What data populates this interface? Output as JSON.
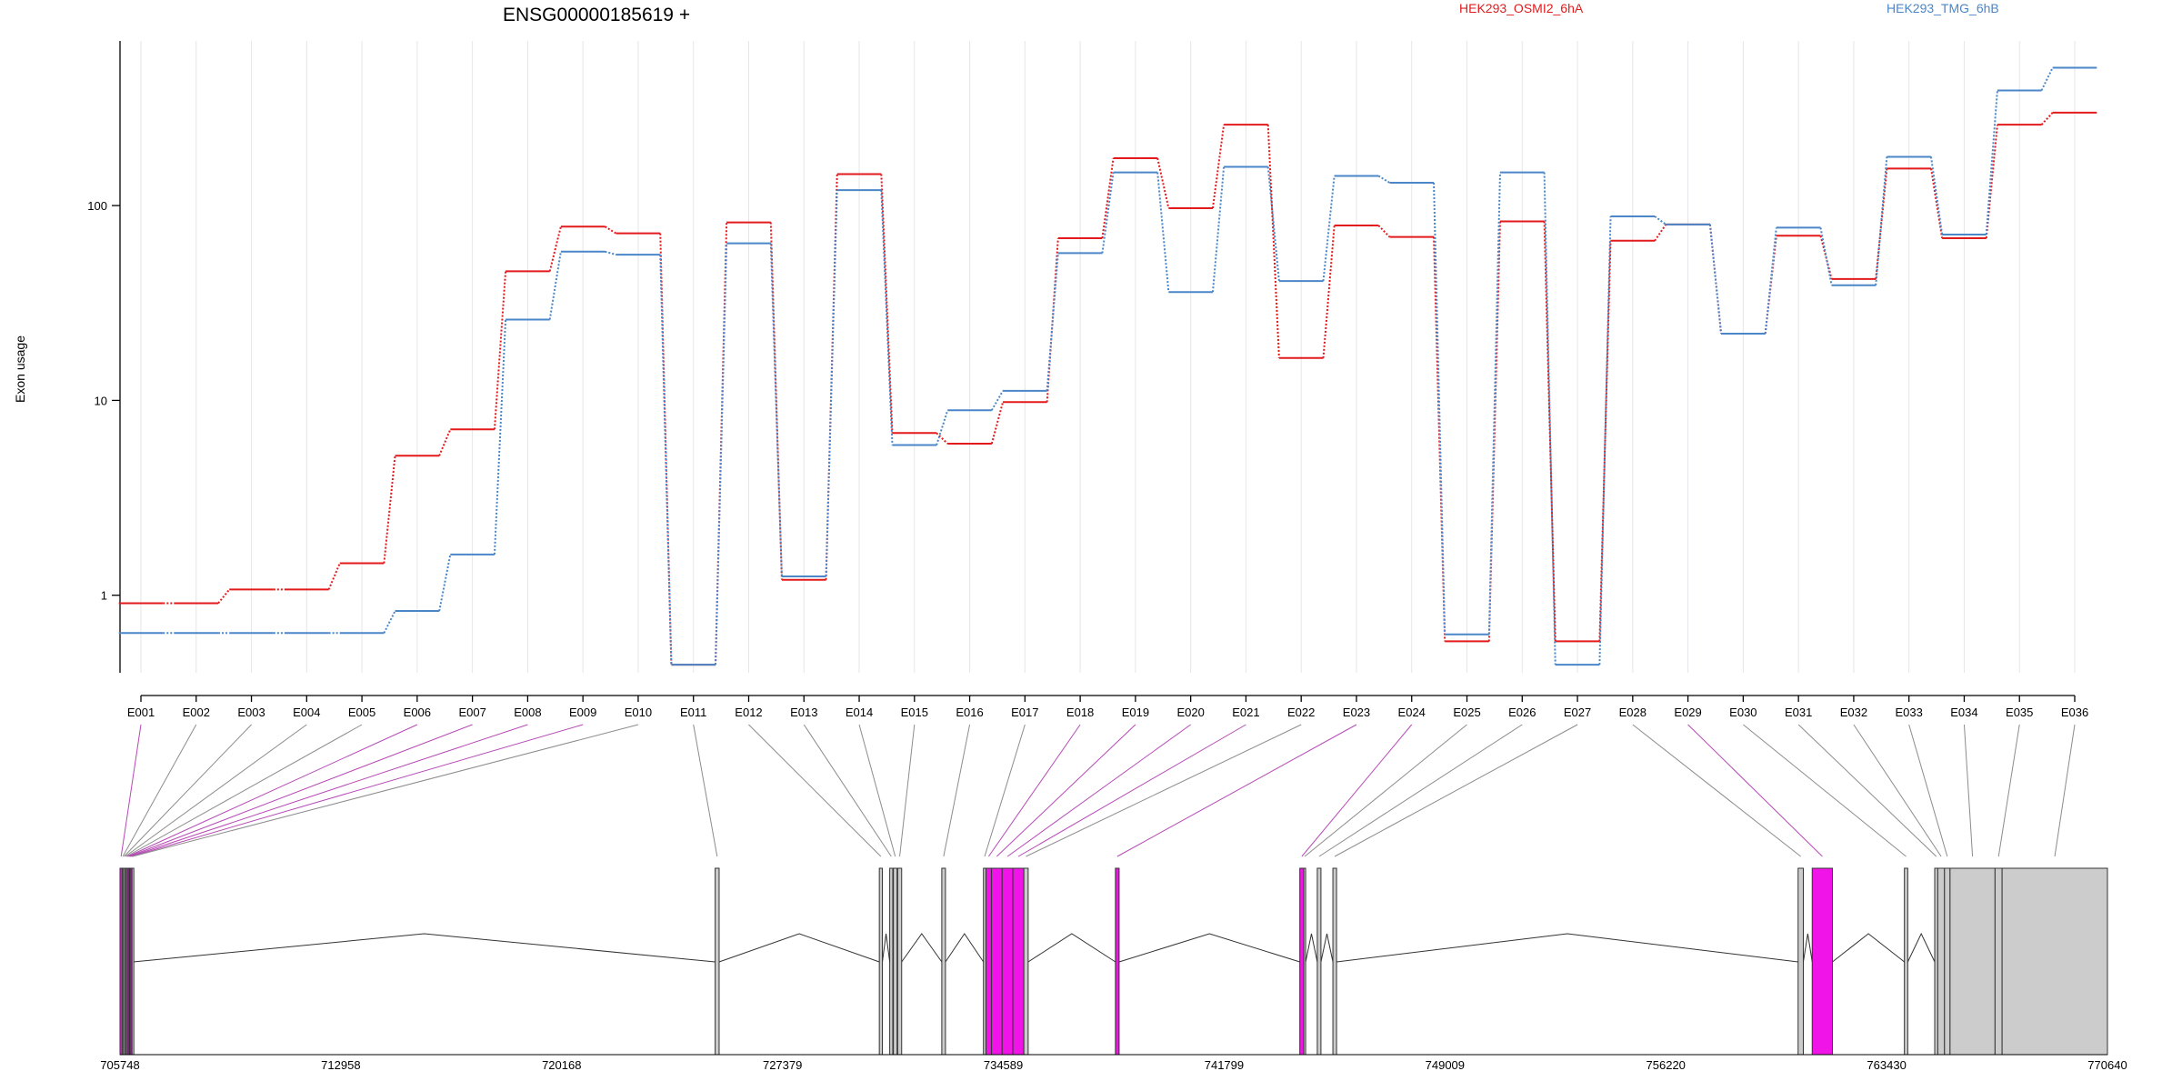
{
  "chart_data": {
    "type": "line",
    "title": "ENSG00000185619 +",
    "ylabel": "Exon usage",
    "yscale": "log",
    "ylim": [
      0.4,
      700
    ],
    "yticks": [
      {
        "value": 1,
        "label": "1"
      },
      {
        "value": 10,
        "label": "10"
      },
      {
        "value": 100,
        "label": "100"
      }
    ],
    "categories": [
      "E001",
      "E002",
      "E003",
      "E004",
      "E005",
      "E006",
      "E007",
      "E008",
      "E009",
      "E010",
      "E011",
      "E012",
      "E013",
      "E014",
      "E015",
      "E016",
      "E017",
      "E018",
      "E019",
      "E020",
      "E021",
      "E022",
      "E023",
      "E024",
      "E025",
      "E026",
      "E027",
      "E028",
      "E029",
      "E030",
      "E031",
      "E032",
      "E033",
      "E034",
      "E035",
      "E036"
    ],
    "series": [
      {
        "name": "HEK293_OSMI2_6hA",
        "color": "#e31a1c",
        "values": [
          0.91,
          0.91,
          1.07,
          1.07,
          1.46,
          5.2,
          7.1,
          46,
          78,
          72,
          0.44,
          82,
          1.2,
          145,
          6.8,
          6.0,
          9.8,
          68,
          175,
          97,
          260,
          16.5,
          79,
          69,
          0.58,
          83,
          0.58,
          66,
          80,
          22,
          70,
          42,
          155,
          68,
          260,
          300
        ]
      },
      {
        "name": "HEK293_TMG_6hB",
        "color": "#4a86c8",
        "values": [
          0.64,
          0.64,
          0.64,
          0.64,
          0.64,
          0.83,
          1.62,
          26,
          58,
          56,
          0.44,
          64,
          1.25,
          120,
          5.9,
          8.9,
          11.2,
          57,
          148,
          36,
          158,
          41,
          142,
          131,
          0.63,
          148,
          0.44,
          88,
          80,
          22,
          77,
          39,
          178,
          71,
          390,
          510
        ]
      }
    ],
    "gene_model": {
      "coordinates": [
        "705748",
        "712958",
        "720168",
        "727379",
        "734589",
        "741799",
        "749009",
        "756220",
        "763430",
        "770640"
      ],
      "genomic_range": [
        705748,
        770640
      ],
      "exons": [
        {
          "id": "E001",
          "start": 705748,
          "end": 705820,
          "highlight": true
        },
        {
          "id": "E002",
          "start": 705820,
          "end": 705860,
          "highlight": false
        },
        {
          "id": "E003",
          "start": 705860,
          "end": 705900,
          "highlight": false
        },
        {
          "id": "E004",
          "start": 705900,
          "end": 705940,
          "highlight": false
        },
        {
          "id": "E005",
          "start": 705940,
          "end": 705980,
          "highlight": false
        },
        {
          "id": "E006",
          "start": 705980,
          "end": 706020,
          "highlight": true
        },
        {
          "id": "E007",
          "start": 706020,
          "end": 706060,
          "highlight": true
        },
        {
          "id": "E008",
          "start": 706060,
          "end": 706100,
          "highlight": true
        },
        {
          "id": "E009",
          "start": 706100,
          "end": 706140,
          "highlight": true
        },
        {
          "id": "E010",
          "start": 706140,
          "end": 706180,
          "highlight": false
        },
        {
          "id": "E011",
          "start": 725180,
          "end": 725310,
          "highlight": false
        },
        {
          "id": "E012",
          "start": 730540,
          "end": 730640,
          "highlight": false
        },
        {
          "id": "E013",
          "start": 730880,
          "end": 730980,
          "highlight": false
        },
        {
          "id": "E014",
          "start": 731000,
          "end": 731120,
          "highlight": false
        },
        {
          "id": "E015",
          "start": 731140,
          "end": 731270,
          "highlight": false
        },
        {
          "id": "E016",
          "start": 732580,
          "end": 732700,
          "highlight": false
        },
        {
          "id": "E017",
          "start": 733940,
          "end": 734020,
          "highlight": false
        },
        {
          "id": "E018",
          "start": 734020,
          "end": 734200,
          "highlight": true
        },
        {
          "id": "E019",
          "start": 734200,
          "end": 734550,
          "highlight": true
        },
        {
          "id": "E020",
          "start": 734550,
          "end": 734900,
          "highlight": true
        },
        {
          "id": "E021",
          "start": 734900,
          "end": 735260,
          "highlight": true
        },
        {
          "id": "E022",
          "start": 735260,
          "end": 735400,
          "highlight": false
        },
        {
          "id": "E023",
          "start": 738250,
          "end": 738370,
          "highlight": true
        },
        {
          "id": "E024",
          "start": 744270,
          "end": 744400,
          "highlight": true
        },
        {
          "id": "E025",
          "start": 744400,
          "end": 744460,
          "highlight": false
        },
        {
          "id": "E026",
          "start": 744840,
          "end": 744960,
          "highlight": false
        },
        {
          "id": "E027",
          "start": 745350,
          "end": 745470,
          "highlight": false
        },
        {
          "id": "E028",
          "start": 760540,
          "end": 760710,
          "highlight": false
        },
        {
          "id": "E029",
          "start": 761000,
          "end": 761660,
          "highlight": true
        },
        {
          "id": "E030",
          "start": 764010,
          "end": 764120,
          "highlight": false
        },
        {
          "id": "E031",
          "start": 765000,
          "end": 765100,
          "highlight": false
        },
        {
          "id": "E032",
          "start": 765100,
          "end": 765320,
          "highlight": false
        },
        {
          "id": "E033",
          "start": 765320,
          "end": 765500,
          "highlight": false
        },
        {
          "id": "E034",
          "start": 765500,
          "end": 766970,
          "highlight": false
        },
        {
          "id": "E035",
          "start": 766970,
          "end": 767200,
          "highlight": false
        },
        {
          "id": "E036",
          "start": 767200,
          "end": 770640,
          "highlight": false
        }
      ]
    },
    "colors": {
      "highlight": "#f014e8",
      "exon_fill": "#cccccc",
      "grid": "#e6e6ea"
    },
    "grid": true,
    "legend_position": "top-right"
  }
}
